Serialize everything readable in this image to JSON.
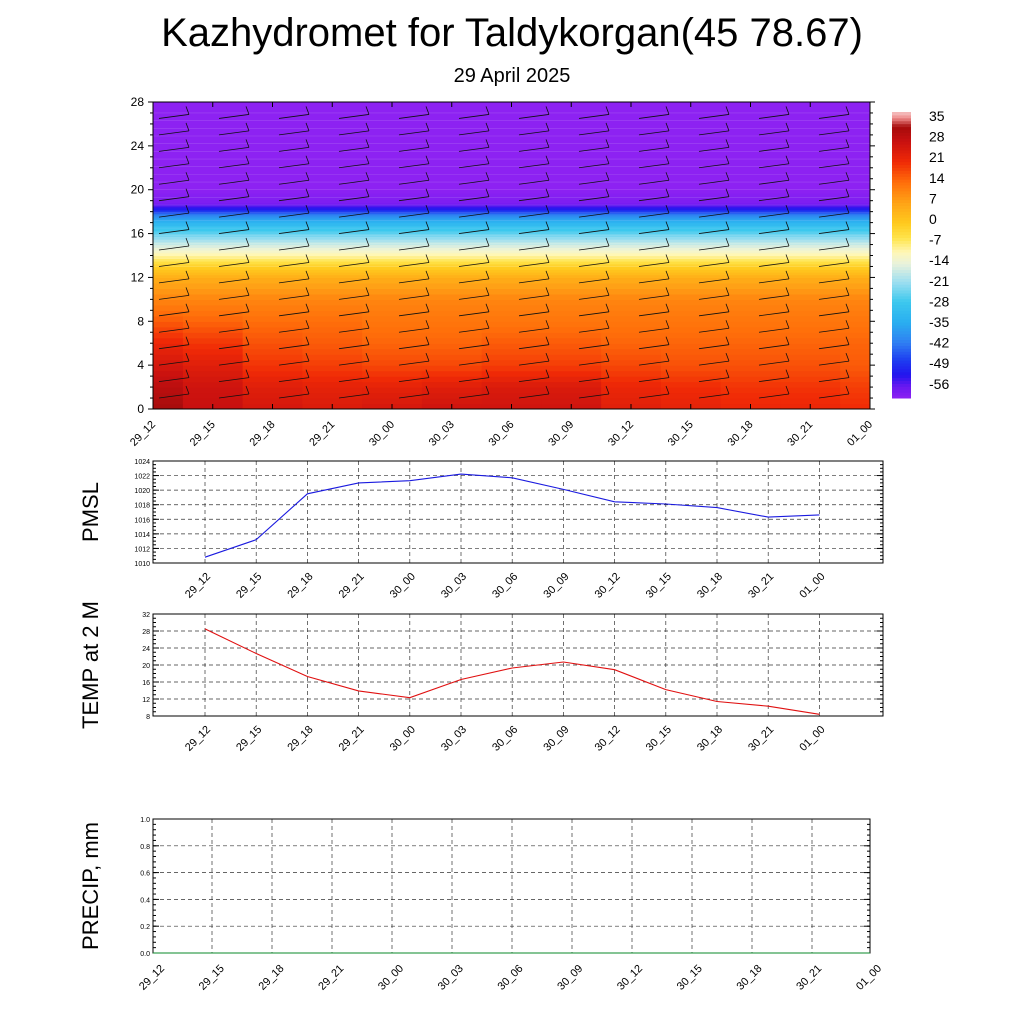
{
  "title": "Kazhydromet for Taldykorgan(45 78.67)",
  "subtitle": "29 April 2025",
  "colors": {
    "pmsl_line": "#1a1adf",
    "temp_line": "#e01010",
    "precip_line": "#0a8a2a",
    "axis": "#000000",
    "grid": "#333333"
  },
  "chart_data": [
    {
      "type": "heatmap",
      "name": "cross-section",
      "x_tick_labels": [
        "29_12",
        "29_15",
        "29_18",
        "29_21",
        "30_00",
        "30_03",
        "30_06",
        "30_09",
        "30_12",
        "30_15",
        "30_18",
        "30_21",
        "01_00"
      ],
      "ylim": [
        0,
        28
      ],
      "y_ticks": [
        0,
        4,
        8,
        12,
        16,
        20,
        24,
        28
      ],
      "colorbar_labels": [
        "35",
        "28",
        "21",
        "14",
        "7",
        "0",
        "-7",
        "-14",
        "-21",
        "-28",
        "-35",
        "-42",
        "-49",
        "-56"
      ],
      "colorbar_range": [
        -60,
        38
      ],
      "levels": [
        0,
        2,
        4,
        6,
        8,
        10,
        12,
        13,
        14,
        15,
        16,
        17,
        17.7,
        18.2,
        18.8,
        20,
        28
      ],
      "values": [
        [
          33,
          28,
          26,
          25,
          26,
          27,
          27,
          27,
          24,
          23,
          22,
          22,
          21
        ],
        [
          30,
          27,
          24,
          23,
          23,
          24,
          25,
          25,
          22,
          21,
          20,
          20,
          19
        ],
        [
          26,
          24,
          20,
          19,
          18,
          18,
          19,
          19,
          18,
          17,
          17,
          17,
          16
        ],
        [
          22,
          20,
          17,
          16,
          15,
          15,
          16,
          16,
          15,
          15,
          15,
          15,
          15
        ],
        [
          16,
          15,
          14,
          14,
          13,
          13,
          13,
          13,
          13,
          13,
          13,
          13,
          13
        ],
        [
          11,
          11,
          11,
          11,
          11,
          11,
          11,
          11,
          11,
          11,
          11,
          11,
          11
        ],
        [
          5,
          5,
          5,
          5,
          5,
          5,
          5,
          5,
          5,
          5,
          5,
          5,
          5
        ],
        [
          -1,
          -1,
          -1,
          -1,
          -1,
          -1,
          -1,
          -1,
          -1,
          -1,
          -1,
          -1,
          -1
        ],
        [
          -9,
          -9,
          -9,
          -9,
          -9,
          -9,
          -9,
          -9,
          -9,
          -9,
          -9,
          -9,
          -9
        ],
        [
          -16,
          -16,
          -16,
          -16,
          -16,
          -16,
          -16,
          -16,
          -16,
          -16,
          -16,
          -16,
          -16
        ],
        [
          -24,
          -24,
          -24,
          -24,
          -24,
          -24,
          -24,
          -24,
          -24,
          -24,
          -24,
          -24,
          -24
        ],
        [
          -32,
          -32,
          -32,
          -32,
          -32,
          -32,
          -32,
          -32,
          -32,
          -32,
          -32,
          -32,
          -32
        ],
        [
          -40,
          -40,
          -40,
          -40,
          -40,
          -40,
          -40,
          -40,
          -40,
          -40,
          -40,
          -40,
          -40
        ],
        [
          -50,
          -50,
          -50,
          -50,
          -50,
          -50,
          -50,
          -50,
          -50,
          -50,
          -50,
          -50,
          -50
        ],
        [
          -58,
          -58,
          -58,
          -58,
          -58,
          -58,
          -58,
          -58,
          -58,
          -58,
          -58,
          -58,
          -58
        ],
        [
          -60,
          -60,
          -60,
          -60,
          -60,
          -60,
          -60,
          -60,
          -60,
          -60,
          -60,
          -60,
          -60
        ],
        [
          -60,
          -60,
          -60,
          -60,
          -60,
          -60,
          -60,
          -60,
          -60,
          -60,
          -60,
          -60,
          -60
        ]
      ]
    },
    {
      "type": "line",
      "ylabel": "PMSL",
      "ylim": [
        1010,
        1024
      ],
      "y_ticks": [
        1010,
        1012,
        1014,
        1016,
        1018,
        1020,
        1022,
        1024
      ],
      "categories": [
        "29_12",
        "29_15",
        "29_18",
        "29_21",
        "30_00",
        "30_03",
        "30_06",
        "30_09",
        "30_12",
        "30_15",
        "30_18",
        "30_21",
        "01_00"
      ],
      "values": [
        1010.8,
        1013.2,
        1019.5,
        1021.0,
        1021.3,
        1022.2,
        1021.7,
        1020.1,
        1018.4,
        1018.1,
        1017.6,
        1016.3,
        1016.6
      ],
      "grid": true
    },
    {
      "type": "line",
      "ylabel": "TEMP at 2 M",
      "ylim": [
        8,
        32
      ],
      "y_ticks": [
        8,
        12,
        16,
        20,
        24,
        28,
        32
      ],
      "categories": [
        "29_12",
        "29_15",
        "29_18",
        "29_21",
        "30_00",
        "30_03",
        "30_06",
        "30_09",
        "30_12",
        "30_15",
        "30_18",
        "30_21",
        "01_00"
      ],
      "values": [
        28.5,
        22.7,
        17.3,
        13.9,
        12.3,
        16.6,
        19.3,
        20.7,
        18.9,
        14.2,
        11.4,
        10.3,
        8.4
      ],
      "grid": true
    },
    {
      "type": "line",
      "ylabel": "PRECIP, mm",
      "ylim": [
        0,
        1
      ],
      "y_ticks": [
        "0.0",
        "0.2",
        "0.4",
        "0.6",
        "0.8",
        "1.0"
      ],
      "categories": [
        "29_12",
        "29_15",
        "29_18",
        "29_21",
        "30_00",
        "30_03",
        "30_06",
        "30_09",
        "30_12",
        "30_15",
        "30_18",
        "30_21",
        "01_00"
      ],
      "values": [
        0,
        0,
        0,
        0,
        0,
        0,
        0,
        0,
        0,
        0,
        0,
        0,
        0
      ],
      "grid": true
    }
  ]
}
